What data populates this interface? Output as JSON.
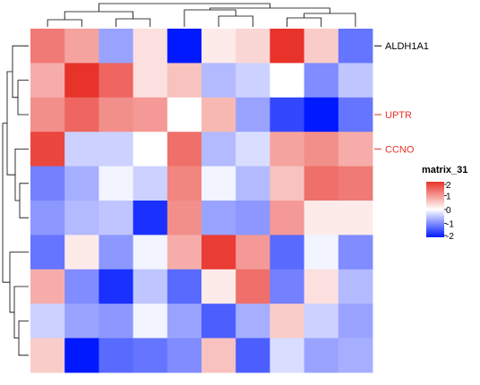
{
  "chart_data": {
    "type": "heatmap",
    "title": "",
    "xlabel": "",
    "ylabel": "",
    "n_rows": 10,
    "n_cols": 10,
    "values": [
      [
        1.3,
        0.9,
        -0.8,
        0.3,
        -2.0,
        0.2,
        0.4,
        2.0,
        0.5,
        -1.2
      ],
      [
        0.8,
        2.0,
        1.5,
        0.3,
        0.6,
        -0.6,
        -0.4,
        0.0,
        -1.0,
        -0.5
      ],
      [
        1.1,
        1.5,
        1.1,
        1.0,
        0.0,
        0.7,
        -0.8,
        -1.6,
        -2.0,
        -1.2
      ],
      [
        1.8,
        -0.4,
        -0.4,
        0.0,
        1.4,
        -0.6,
        -0.3,
        0.9,
        1.1,
        0.8
      ],
      [
        -1.1,
        -0.7,
        -0.1,
        -0.4,
        1.2,
        -0.1,
        -0.6,
        0.6,
        1.4,
        1.3
      ],
      [
        -0.9,
        -0.6,
        -0.5,
        -1.8,
        1.1,
        -0.8,
        -0.9,
        1.0,
        0.2,
        0.2
      ],
      [
        -1.2,
        0.2,
        -0.9,
        -0.1,
        0.8,
        1.9,
        1.0,
        -1.3,
        -0.1,
        -1.0
      ],
      [
        0.8,
        -1.0,
        -1.8,
        -0.5,
        -1.3,
        0.2,
        1.4,
        -1.1,
        0.3,
        -0.6
      ],
      [
        -0.4,
        -0.8,
        -0.9,
        -0.1,
        -0.8,
        -1.4,
        -0.7,
        0.5,
        -0.4,
        -0.8
      ],
      [
        0.5,
        -2.0,
        -1.3,
        -1.2,
        -1.0,
        0.6,
        -1.4,
        -0.3,
        -0.8,
        -0.7
      ]
    ],
    "row_labels": [
      {
        "row": 0,
        "text": "ALDH1A1",
        "color": "#000000"
      },
      {
        "row": 2,
        "text": "UPTR",
        "color": "#e8332a"
      },
      {
        "row": 3,
        "text": "CCNO",
        "color": "#e8332a"
      }
    ],
    "legend": {
      "title": "matrix_31",
      "ticks": [
        2,
        1,
        0,
        -1,
        -2
      ],
      "placement": "right",
      "colors": {
        "high": "#e8332a",
        "mid": "#ffffff",
        "low": "#0019ff"
      }
    }
  }
}
